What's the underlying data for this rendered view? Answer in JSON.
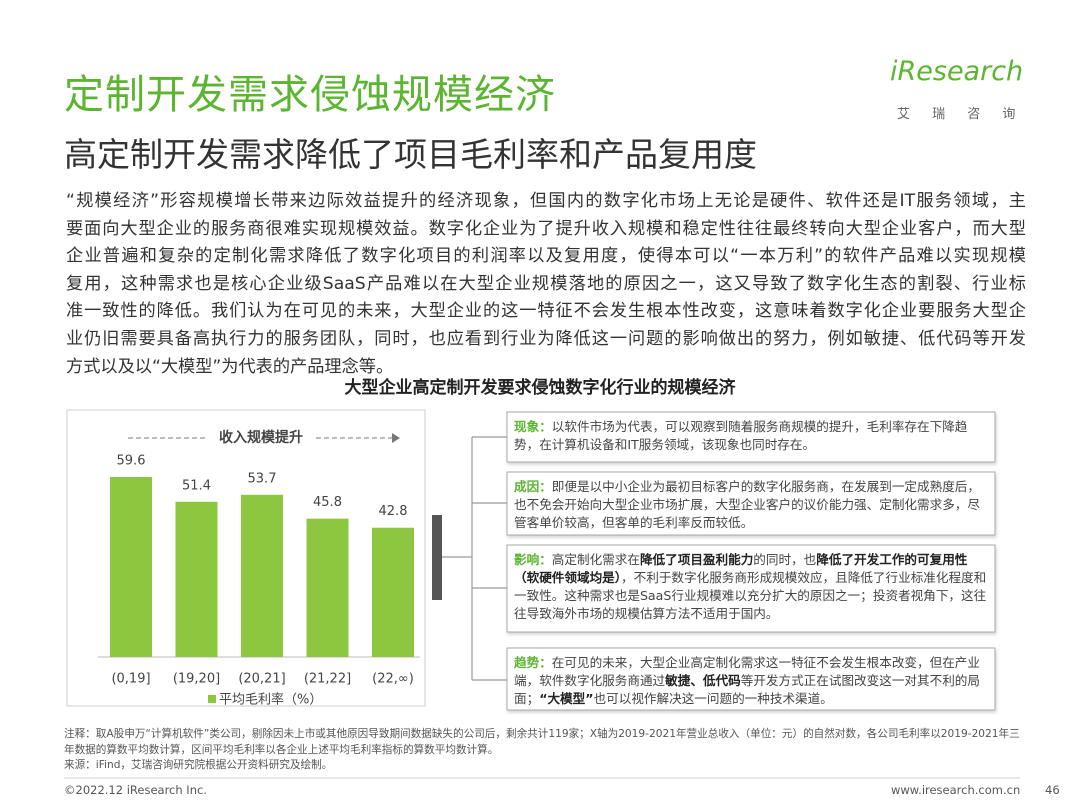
{
  "header": {
    "title": "定制开发需求侵蚀规模经济",
    "subtitle": "高定制开发需求降低了项目毛利率和产品复用度",
    "logo": "iResearch",
    "logo_cn": "艾 瑞 咨 询"
  },
  "paragraph": [
    "“规模经济”形容规模增长带来边际效益提升的经济现象，但国内的数字化市场上无论是硬件、软件还是IT服务领域，主",
    "要面向大型企业的服务商很难实现规模效益。数字化企业为了提升收入规模和稳定性往往最终转向大型企业客户，而大型",
    "企业普遍和复杂的定制化需求降低了数字化项目的利润率以及复用度，使得本可以“一本万利”的软件产品难以实现规模",
    "复用，这种需求也是核心企业级SaaS产品难以在大型企业规模落地的原因之一，这又导致了数字化生态的割裂、行业标",
    "准一致性的降低。我们认为在可见的未来，大型企业的这一特征不会发生根本性改变，这意味着数字化企业要服务大型企",
    "业仍旧需要具备高执行力的服务团队，同时，也应看到行业为降低这一问题的影响做出的努力，例如敏捷、低代码等开发",
    "方式以及以“大模型”为代表的产品理念等。"
  ],
  "chart_data": {
    "type": "bar",
    "title": "大型企业高定制开发要求侵蚀数字化行业的规模经济",
    "annotation": "收入规模提升",
    "categories": [
      "(0,19]",
      "(19,20]",
      "(20,21]",
      "(21,22]",
      "(22,∞)"
    ],
    "series": [
      {
        "name": "平均毛利率（%）",
        "color": "#8dc63f",
        "values": [
          59.6,
          51.4,
          53.7,
          45.8,
          42.8
        ]
      }
    ]
  },
  "panels": [
    {
      "label": "现象：",
      "runs": [
        {
          "text": "以软件市场为代表，可以观察到随着服务商规模的提升，毛利率存在下降趋势，在计算机设备和IT服务领域，该现象也同时存在。",
          "bold": false
        }
      ]
    },
    {
      "label": "成因：",
      "runs": [
        {
          "text": "即便是以中小企业为最初目标客户的数字化服务商，在发展到一定成熟度后，也不免会开始向大型企业市场扩展，大型企业客户的议价能力强、定制化需求多，尽管客单价较高，但客单的毛利率反而较低。",
          "bold": false
        }
      ]
    },
    {
      "label": "影响：",
      "runs": [
        {
          "text": "高定制化需求在",
          "bold": false
        },
        {
          "text": "降低了项目盈利能力",
          "bold": true
        },
        {
          "text": "的同时，也",
          "bold": false
        },
        {
          "text": "降低了开发工作的可复用性（软硬件领域均是）",
          "bold": true
        },
        {
          "text": "，不利于数字化服务商形成规模效应，且降低了行业标准化程度和一致性。这种需求也是SaaS行业规模难以充分扩大的原因之一；投资者视角下，这往往导致海外市场的规模估算方法不适用于国内。",
          "bold": false
        }
      ]
    },
    {
      "label": "趋势：",
      "runs": [
        {
          "text": "在可见的未来，大型企业高定制化需求这一特征不会发生根本改变，但在产业端，软件数字化服务商通过",
          "bold": false
        },
        {
          "text": "敏捷、低代码",
          "bold": true
        },
        {
          "text": "等开发方式正在试图改变这一对其不利的局面；",
          "bold": false
        },
        {
          "text": "“大模型”",
          "bold": true
        },
        {
          "text": "也可以视作解决这一问题的一种技术渠道。",
          "bold": false
        }
      ]
    }
  ],
  "notes": [
    "注释：取A股申万“计算机软件”类公司，剔除因未上市或其他原因导致期间数据缺失的公司后，剩余共计119家；X轴为2019-2021年营业总收入（单位：元）的自然对数，各公司毛利率以2019-2021年三年数据的算数平均数计算，区间平均毛利率以各企业上述平均毛利率指标的算数平均数计算。",
    "来源：iFind，艾瑞咨询研究院根据公开资料研究及绘制。"
  ],
  "footer": {
    "copyright": "©2022.12 iResearch Inc.",
    "url": "www.iresearch.com.cn",
    "page": "46"
  }
}
